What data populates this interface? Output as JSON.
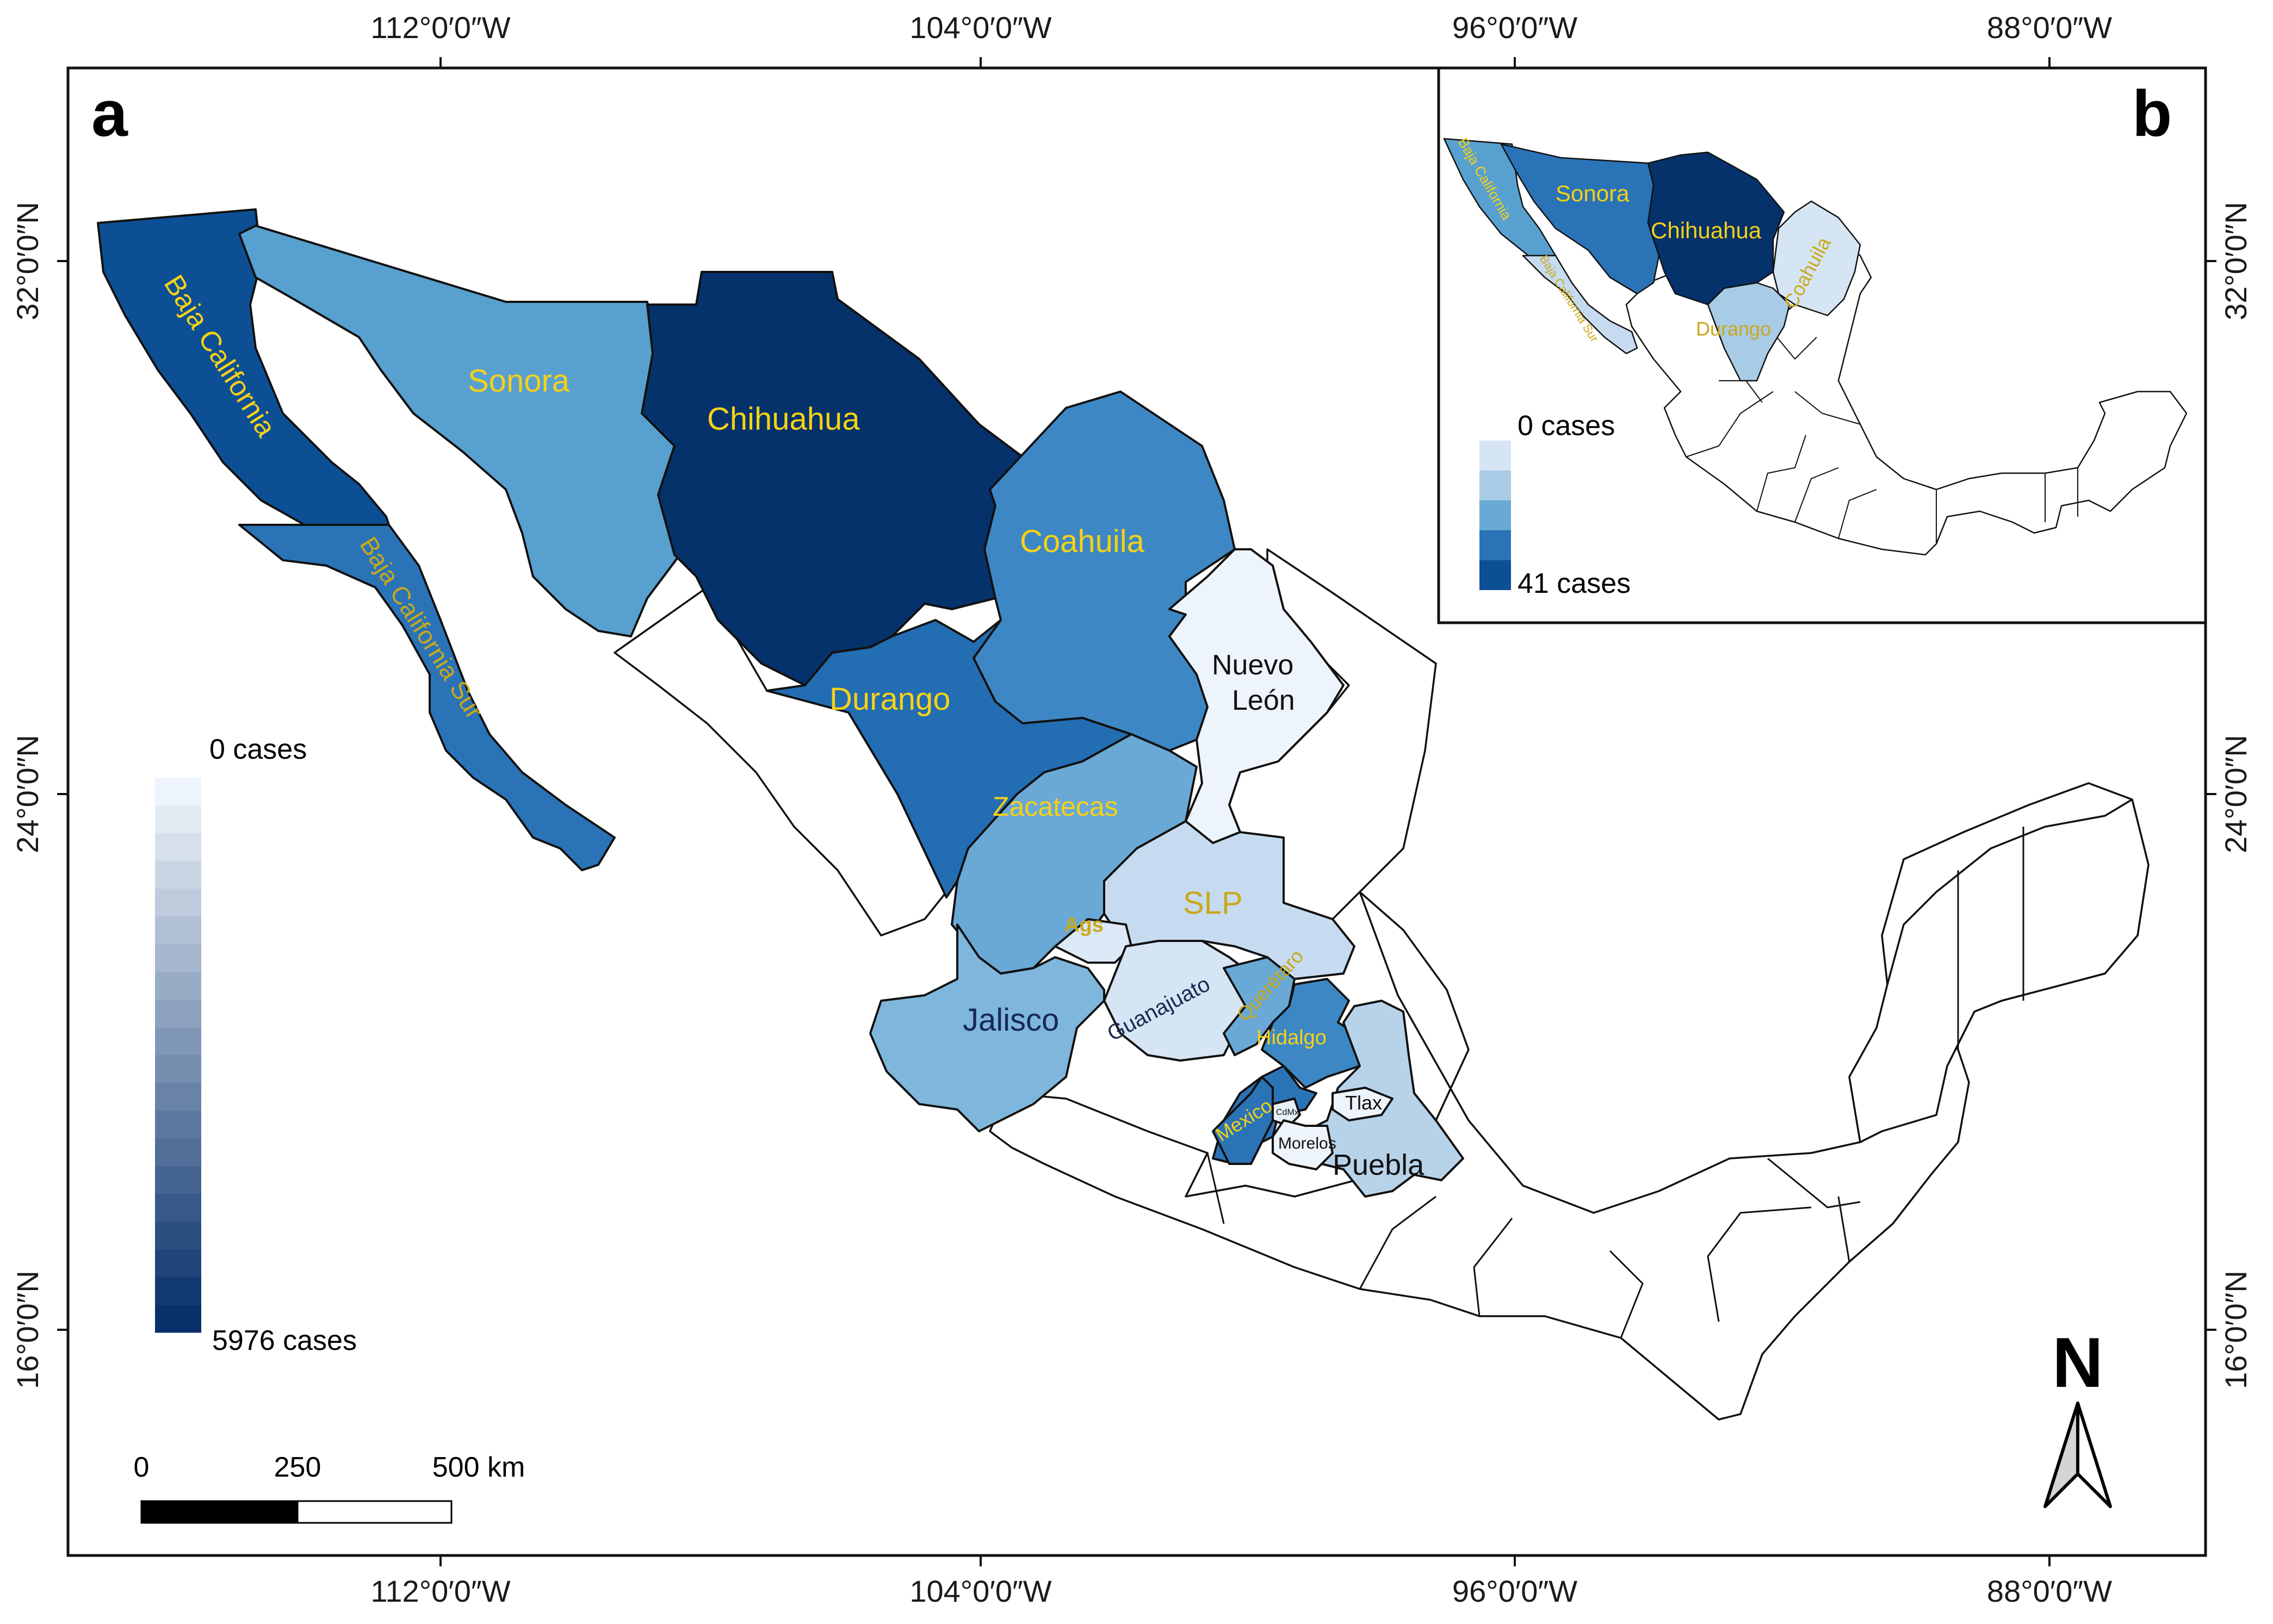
{
  "panels": {
    "main_label": "a",
    "inset_label": "b"
  },
  "graticule": {
    "top_lon": [
      "112°0′0″W",
      "104°0′0″W",
      "96°0′0″W",
      "88°0′0″W"
    ],
    "bottom_lon": [
      "112°0′0″W",
      "104°0′0″W",
      "96°0′0″W",
      "88°0′0″W"
    ],
    "left_lat": [
      "32°0′0″N",
      "24°0′0″N",
      "16°0′0″N"
    ],
    "right_lat": [
      "32°0′0″N",
      "24°0′0″N",
      "16°0′0″N"
    ]
  },
  "legend_main": {
    "min_label": "0 cases",
    "max_label": "5976 cases",
    "steps": 20,
    "color_low": "#eef4fb",
    "color_high": "#08306b"
  },
  "legend_inset": {
    "min_label": "0 cases",
    "max_label": "41 cases"
  },
  "scale_bar": {
    "labels": [
      "0",
      "250",
      "500 km"
    ]
  },
  "north_arrow": {
    "label": "N"
  },
  "states": [
    {
      "id": "baja-california",
      "name": "Baja California",
      "fill": "#0d4f95",
      "label_color": "#f5d118"
    },
    {
      "id": "baja-california-sur",
      "name": "Baja California Sur",
      "fill": "#2a73b7",
      "label_color": "#c9a81b"
    },
    {
      "id": "sonora",
      "name": "Sonora",
      "fill": "#58a0cf",
      "label_color": "#f5d118"
    },
    {
      "id": "chihuahua",
      "name": "Chihuahua",
      "fill": "#05326a",
      "label_color": "#f5d118"
    },
    {
      "id": "coahuila",
      "name": "Coahuila",
      "fill": "#3d88c4",
      "label_color": "#f5d118"
    },
    {
      "id": "durango",
      "name": "Durango",
      "fill": "#236db2",
      "label_color": "#f5d118"
    },
    {
      "id": "nuevo-leon",
      "name": "Nuevo León",
      "fill": "#eef4fb",
      "label_color": "#111111"
    },
    {
      "id": "zacatecas",
      "name": "Zacatecas",
      "fill": "#6aa9d6",
      "label_color": "#f5d118"
    },
    {
      "id": "slp",
      "name": "SLP",
      "fill": "#c6dbef",
      "label_color": "#c9a81b"
    },
    {
      "id": "ags",
      "name": "Ags",
      "fill": "#dbe8f5",
      "label_color": "#c9a81b"
    },
    {
      "id": "jalisco",
      "name": "Jalisco",
      "fill": "#7fb6dc",
      "label_color": "#15285a"
    },
    {
      "id": "guanajuato",
      "name": "Guanajuato",
      "fill": "#d6e5f4",
      "label_color": "#1a2a50"
    },
    {
      "id": "queretaro",
      "name": "Querétaro",
      "fill": "#6aa9d6",
      "label_color": "#c9a81b"
    },
    {
      "id": "hidalgo",
      "name": "Hidalgo",
      "fill": "#3d88c4",
      "label_color": "#f5d118"
    },
    {
      "id": "mexico",
      "name": "Mexico",
      "fill": "#2a73b7",
      "label_color": "#f5d118"
    },
    {
      "id": "cdmx",
      "name": "CdMx",
      "fill": "#e8f0f9",
      "label_color": "#111111"
    },
    {
      "id": "tlax",
      "name": "Tlax",
      "fill": "#eef4fb",
      "label_color": "#111111"
    },
    {
      "id": "morelos",
      "name": "Morelos",
      "fill": "#eef4fb",
      "label_color": "#111111"
    },
    {
      "id": "puebla",
      "name": "Puebla",
      "fill": "#b7d3ea",
      "label_color": "#111111"
    }
  ],
  "inset_states": [
    {
      "id": "baja-california",
      "name": "Baja California",
      "fill": "#58a0cf",
      "label_color": "#f5d118"
    },
    {
      "id": "baja-california-sur",
      "name": "Baja California Sur",
      "fill": "#c6dbef",
      "label_color": "#c9a81b"
    },
    {
      "id": "sonora",
      "name": "Sonora",
      "fill": "#2a73b7",
      "label_color": "#f5d118"
    },
    {
      "id": "chihuahua",
      "name": "Chihuahua",
      "fill": "#05326a",
      "label_color": "#f5d118"
    },
    {
      "id": "coahuila",
      "name": "Coahuila",
      "fill": "#d6e5f4",
      "label_color": "#c9a81b"
    },
    {
      "id": "durango",
      "name": "Durango",
      "fill": "#a8cbe6",
      "label_color": "#c9a81b"
    }
  ],
  "inset_legend_colors": [
    "#ffffff",
    "#d6e5f4",
    "#a8cbe6",
    "#6aa9d6",
    "#2a73b7",
    "#0d4f95"
  ]
}
